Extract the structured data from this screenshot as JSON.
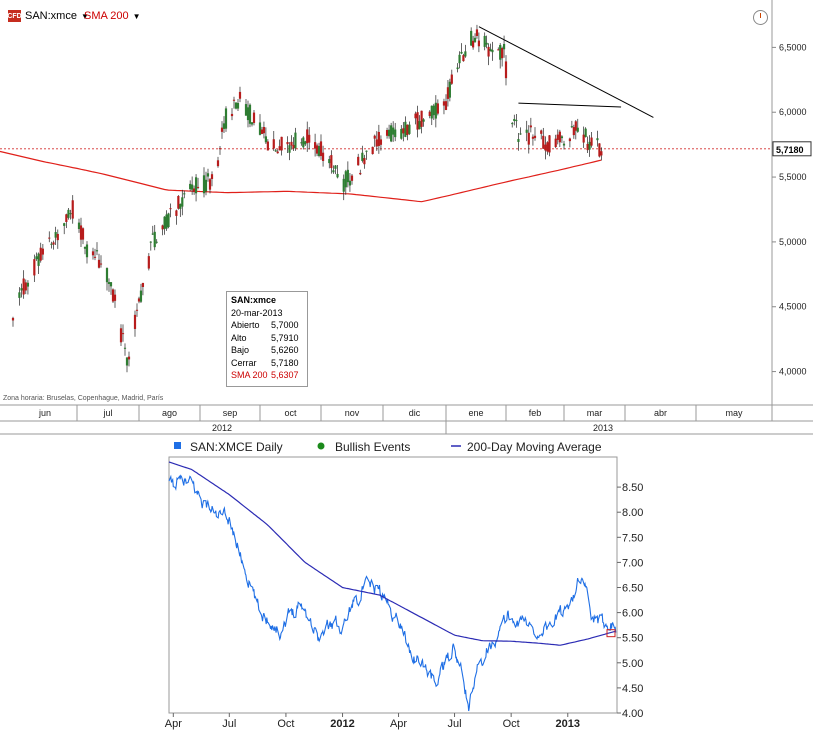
{
  "toolbar": {
    "symbol": "SAN:xmce",
    "indicator": "SMA 200",
    "logo_text": "CFD"
  },
  "info_box": {
    "title": "SAN:xmce",
    "date": "20-mar-2013",
    "rows": [
      {
        "label": "Abierto",
        "value": "5,7000"
      },
      {
        "label": "Alto",
        "value": "5,7910"
      },
      {
        "label": "Bajo",
        "value": "5,6260"
      },
      {
        "label": "Cerrar",
        "value": "5,7180"
      },
      {
        "label": "SMA 200",
        "value": "5,6307"
      }
    ]
  },
  "timezone_note": "Zona horaria: Bruselas, Copenhague, Madrid, París",
  "colors": {
    "up_candle": "#2e7d32",
    "down_candle": "#b71c1c",
    "sma": "#e0201a",
    "trendline": "#000000",
    "last_price_line": "#d32f2f",
    "daily_series": "#1f6fe5",
    "ma_series": "#2b2bb4"
  },
  "chart_data": [
    {
      "type": "candlestick",
      "title": "SAN:xmce",
      "ylim": [
        3.75,
        6.85
      ],
      "y_ticks": [
        "6,5000",
        "6,0000",
        "5,5000",
        "5,0000",
        "4,5000",
        "4,0000"
      ],
      "y_tick_values": [
        6.5,
        6.0,
        5.5,
        5.0,
        4.5,
        4.0
      ],
      "last_price_label": "5,7180",
      "last_price": 5.718,
      "x_months": [
        "jun",
        "jul",
        "ago",
        "sep",
        "oct",
        "nov",
        "dic",
        "ene",
        "feb",
        "mar",
        "abr",
        "may"
      ],
      "x_years": [
        "2012",
        "2013"
      ],
      "price_path": [
        {
          "t": "2012-06-01",
          "v": 4.45
        },
        {
          "t": "2012-06-08",
          "v": 4.72
        },
        {
          "t": "2012-06-15",
          "v": 4.95
        },
        {
          "t": "2012-06-22",
          "v": 5.05
        },
        {
          "t": "2012-06-29",
          "v": 5.25
        },
        {
          "t": "2012-07-06",
          "v": 4.95
        },
        {
          "t": "2012-07-13",
          "v": 4.85
        },
        {
          "t": "2012-07-20",
          "v": 4.55
        },
        {
          "t": "2012-07-26",
          "v": 4.05
        },
        {
          "t": "2012-08-01",
          "v": 4.55
        },
        {
          "t": "2012-08-08",
          "v": 5.0
        },
        {
          "t": "2012-08-15",
          "v": 5.15
        },
        {
          "t": "2012-08-22",
          "v": 5.3
        },
        {
          "t": "2012-08-31",
          "v": 5.45
        },
        {
          "t": "2012-09-07",
          "v": 5.45
        },
        {
          "t": "2012-09-14",
          "v": 5.95
        },
        {
          "t": "2012-09-20",
          "v": 6.1
        },
        {
          "t": "2012-09-28",
          "v": 5.95
        },
        {
          "t": "2012-10-05",
          "v": 5.75
        },
        {
          "t": "2012-10-15",
          "v": 5.75
        },
        {
          "t": "2012-10-25",
          "v": 5.8
        },
        {
          "t": "2012-11-05",
          "v": 5.65
        },
        {
          "t": "2012-11-12",
          "v": 5.45
        },
        {
          "t": "2012-11-20",
          "v": 5.6
        },
        {
          "t": "2012-11-30",
          "v": 5.8
        },
        {
          "t": "2012-12-07",
          "v": 5.85
        },
        {
          "t": "2012-12-14",
          "v": 5.9
        },
        {
          "t": "2012-12-21",
          "v": 5.95
        },
        {
          "t": "2012-12-31",
          "v": 6.05
        },
        {
          "t": "2013-01-07",
          "v": 6.35
        },
        {
          "t": "2013-01-14",
          "v": 6.55
        },
        {
          "t": "2013-01-18",
          "v": 6.58
        },
        {
          "t": "2013-01-25",
          "v": 6.45
        },
        {
          "t": "2013-01-31",
          "v": 6.45
        },
        {
          "t": "2013-02-04",
          "v": 5.95
        },
        {
          "t": "2013-02-08",
          "v": 5.8
        },
        {
          "t": "2013-02-15",
          "v": 5.85
        },
        {
          "t": "2013-02-22",
          "v": 5.75
        },
        {
          "t": "2013-03-01",
          "v": 5.8
        },
        {
          "t": "2013-03-08",
          "v": 5.9
        },
        {
          "t": "2013-03-14",
          "v": 5.75
        },
        {
          "t": "2013-03-20",
          "v": 5.718
        }
      ],
      "sma_path": [
        {
          "t": "2012-05-20",
          "v": 5.72
        },
        {
          "t": "2012-06-15",
          "v": 5.62
        },
        {
          "t": "2012-07-15",
          "v": 5.52
        },
        {
          "t": "2012-08-15",
          "v": 5.4
        },
        {
          "t": "2012-09-15",
          "v": 5.38
        },
        {
          "t": "2012-10-15",
          "v": 5.39
        },
        {
          "t": "2012-11-15",
          "v": 5.37
        },
        {
          "t": "2012-12-20",
          "v": 5.31
        },
        {
          "t": "2013-01-20",
          "v": 5.42
        },
        {
          "t": "2013-02-20",
          "v": 5.53
        },
        {
          "t": "2013-03-20",
          "v": 5.6307
        }
      ],
      "trendlines": [
        {
          "t1": "2013-01-18",
          "v1": 6.66,
          "t2": "2013-04-13",
          "v2": 5.96
        },
        {
          "t1": "2013-02-07",
          "v1": 6.07,
          "t2": "2013-03-30",
          "v2": 6.04
        }
      ]
    },
    {
      "type": "line",
      "legend": [
        "SAN:XMCE Daily",
        "Bullish Events",
        "200-Day Moving Average"
      ],
      "ylim": [
        4.0,
        9.0
      ],
      "y_ticks": [
        "8.50",
        "8.00",
        "7.50",
        "7.00",
        "6.50",
        "6.00",
        "5.50",
        "5.00",
        "4.50",
        "4.00"
      ],
      "y_tick_values": [
        8.5,
        8.0,
        7.5,
        7.0,
        6.5,
        6.0,
        5.5,
        5.0,
        4.5,
        4.0
      ],
      "x_ticks": [
        "Apr",
        "Jul",
        "Oct",
        "2012",
        "Apr",
        "Jul",
        "Oct",
        "2013"
      ],
      "x_tick_dates": [
        "2011-04-01",
        "2011-07-01",
        "2011-10-01",
        "2012-01-01",
        "2012-04-01",
        "2012-07-01",
        "2012-10-01",
        "2013-01-01"
      ],
      "daily_path": [
        {
          "t": "2011-03-25",
          "v": 8.55
        },
        {
          "t": "2011-04-15",
          "v": 8.6
        },
        {
          "t": "2011-05-01",
          "v": 8.55
        },
        {
          "t": "2011-05-20",
          "v": 8.2
        },
        {
          "t": "2011-06-10",
          "v": 7.95
        },
        {
          "t": "2011-07-01",
          "v": 7.85
        },
        {
          "t": "2011-07-15",
          "v": 7.3
        },
        {
          "t": "2011-08-05",
          "v": 6.5
        },
        {
          "t": "2011-08-20",
          "v": 6.0
        },
        {
          "t": "2011-09-05",
          "v": 5.85
        },
        {
          "t": "2011-09-20",
          "v": 5.6
        },
        {
          "t": "2011-10-05",
          "v": 5.95
        },
        {
          "t": "2011-10-25",
          "v": 6.2
        },
        {
          "t": "2011-11-10",
          "v": 5.85
        },
        {
          "t": "2011-11-25",
          "v": 5.45
        },
        {
          "t": "2011-12-10",
          "v": 5.8
        },
        {
          "t": "2012-01-01",
          "v": 5.75
        },
        {
          "t": "2012-01-20",
          "v": 6.25
        },
        {
          "t": "2012-02-10",
          "v": 6.55
        },
        {
          "t": "2012-03-01",
          "v": 6.45
        },
        {
          "t": "2012-03-20",
          "v": 6.05
        },
        {
          "t": "2012-04-10",
          "v": 5.6
        },
        {
          "t": "2012-04-25",
          "v": 5.1
        },
        {
          "t": "2012-05-15",
          "v": 4.9
        },
        {
          "t": "2012-05-30",
          "v": 4.6
        },
        {
          "t": "2012-06-15",
          "v": 4.95
        },
        {
          "t": "2012-06-28",
          "v": 5.3
        },
        {
          "t": "2012-07-10",
          "v": 4.9
        },
        {
          "t": "2012-07-25",
          "v": 4.1
        },
        {
          "t": "2012-08-10",
          "v": 5.0
        },
        {
          "t": "2012-08-25",
          "v": 5.35
        },
        {
          "t": "2012-09-10",
          "v": 5.55
        },
        {
          "t": "2012-09-25",
          "v": 5.95
        },
        {
          "t": "2012-10-10",
          "v": 5.8
        },
        {
          "t": "2012-10-25",
          "v": 5.85
        },
        {
          "t": "2012-11-10",
          "v": 5.55
        },
        {
          "t": "2012-11-25",
          "v": 5.7
        },
        {
          "t": "2012-12-10",
          "v": 5.85
        },
        {
          "t": "2012-12-25",
          "v": 6.0
        },
        {
          "t": "2013-01-10",
          "v": 6.4
        },
        {
          "t": "2013-01-18",
          "v": 6.6
        },
        {
          "t": "2013-01-31",
          "v": 6.45
        },
        {
          "t": "2013-02-08",
          "v": 5.9
        },
        {
          "t": "2013-02-20",
          "v": 5.75
        },
        {
          "t": "2013-03-05",
          "v": 5.85
        },
        {
          "t": "2013-03-20",
          "v": 5.72
        }
      ],
      "ma_path": [
        {
          "t": "2011-03-25",
          "v": 9.0
        },
        {
          "t": "2011-05-01",
          "v": 8.85
        },
        {
          "t": "2011-07-01",
          "v": 8.35
        },
        {
          "t": "2011-09-01",
          "v": 7.75
        },
        {
          "t": "2011-11-01",
          "v": 7.0
        },
        {
          "t": "2012-01-01",
          "v": 6.5
        },
        {
          "t": "2012-03-01",
          "v": 6.35
        },
        {
          "t": "2012-05-01",
          "v": 5.95
        },
        {
          "t": "2012-07-01",
          "v": 5.55
        },
        {
          "t": "2012-08-15",
          "v": 5.44
        },
        {
          "t": "2012-10-01",
          "v": 5.43
        },
        {
          "t": "2012-11-15",
          "v": 5.39
        },
        {
          "t": "2012-12-20",
          "v": 5.35
        },
        {
          "t": "2013-02-01",
          "v": 5.47
        },
        {
          "t": "2013-03-20",
          "v": 5.63
        }
      ]
    }
  ]
}
